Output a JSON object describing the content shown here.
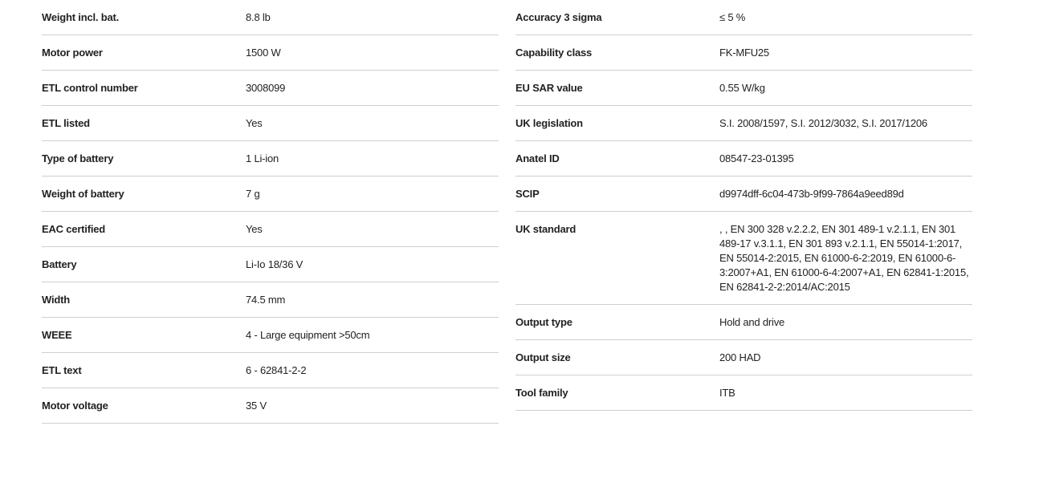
{
  "left_specs": [
    {
      "label": "Weight incl. bat.",
      "value": "8.8 lb"
    },
    {
      "label": "Motor power",
      "value": "1500 W"
    },
    {
      "label": "ETL control number",
      "value": "3008099"
    },
    {
      "label": "ETL listed",
      "value": "Yes"
    },
    {
      "label": "Type of battery",
      "value": "1 Li-ion"
    },
    {
      "label": "Weight of battery",
      "value": "7 g"
    },
    {
      "label": "EAC certified",
      "value": "Yes"
    },
    {
      "label": "Battery",
      "value": "Li-Io 18/36 V"
    },
    {
      "label": "Width",
      "value": "74.5 mm"
    },
    {
      "label": "WEEE",
      "value": "4 - Large equipment >50cm"
    },
    {
      "label": "ETL text",
      "value": "6 - 62841-2-2"
    },
    {
      "label": "Motor voltage",
      "value": "35 V"
    }
  ],
  "right_specs": [
    {
      "label": "Accuracy 3 sigma",
      "value": "≤ 5 %"
    },
    {
      "label": "Capability class",
      "value": "FK-MFU25"
    },
    {
      "label": "EU SAR value",
      "value": "0.55 W/kg"
    },
    {
      "label": "UK legislation",
      "value": "S.I. 2008/1597, S.I. 2012/3032, S.I. 2017/1206"
    },
    {
      "label": "Anatel ID",
      "value": "08547-23-01395"
    },
    {
      "label": "SCIP",
      "value": "d9974dff-6c04-473b-9f99-7864a9eed89d"
    },
    {
      "label": "UK standard",
      "value": ", , EN 300 328 v.2.2.2, EN 301 489-1 v.2.1.1, EN 301 489-17 v.3.1.1, EN 301 893 v.2.1.1, EN 55014-1:2017, EN 55014-2:2015, EN 61000-6-2:2019, EN 61000-6-3:2007+A1, EN 61000-6-4:2007+A1, EN 62841-1:2015, EN 62841-2-2:2014/AC:2015"
    },
    {
      "label": "Output type",
      "value": "Hold and drive"
    },
    {
      "label": "Output size",
      "value": "200 HAD"
    },
    {
      "label": "Tool family",
      "value": "ITB"
    }
  ]
}
